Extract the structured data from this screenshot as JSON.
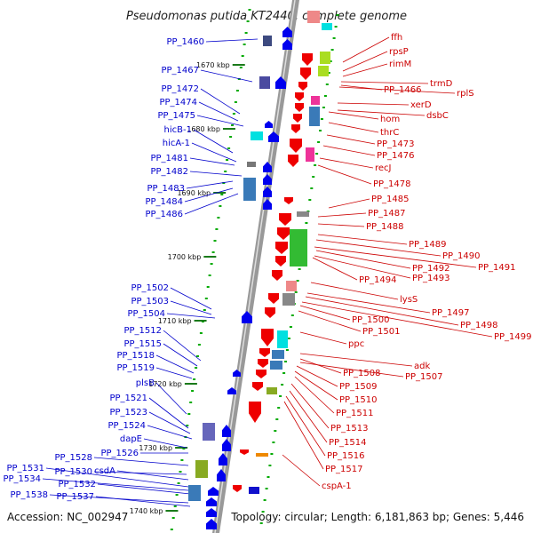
{
  "title": "Pseudomonas putida KT2440, complete genome",
  "accession": "Accession: NC_002947",
  "topology": "Topology: circular; Length: 6,181,863 bp; Genes: 5,446",
  "colors": {
    "forward": "#0000ee",
    "reverse": "#ee0000",
    "backbone": "#999999",
    "tick": "#00aa00"
  },
  "scale_labels": [
    "1670 kbp",
    "1680 kbp",
    "1690 kbp",
    "1700 kbp",
    "1710 kbp",
    "1720 kbp",
    "1730 kbp",
    "1740 kbp"
  ],
  "left_genes": [
    "PP_1460",
    "PP_1467",
    "PP_1472",
    "PP_1474",
    "PP_1475",
    "hicB-1",
    "hicA-1",
    "PP_1481",
    "PP_1482",
    "PP_1483",
    "PP_1484",
    "PP_1486",
    "PP_1502",
    "PP_1503",
    "PP_1504",
    "PP_1512",
    "PP_1515",
    "PP_1518",
    "PP_1519",
    "plsB",
    "PP_1521",
    "PP_1523",
    "PP_1524",
    "dapE",
    "PP_1526",
    "PP_1528",
    "PP_1530",
    "csdA",
    "PP_1531",
    "PP_1534",
    "PP_1532",
    "PP_1538",
    "PP_1537"
  ],
  "right_genes": [
    "ffh",
    "rpsP",
    "rimM",
    "trmD",
    "PP_1466",
    "rplS",
    "xerD",
    "dsbC",
    "hom",
    "thrC",
    "PP_1473",
    "PP_1476",
    "recJ",
    "PP_1478",
    "PP_1485",
    "PP_1487",
    "PP_1488",
    "PP_1489",
    "PP_1490",
    "PP_1491",
    "PP_1492",
    "PP_1493",
    "PP_1494",
    "lysS",
    "PP_1497",
    "PP_1498",
    "PP_1499",
    "PP_1500",
    "PP_1501",
    "ppc",
    "adk",
    "PP_1508",
    "PP_1507",
    "PP_1509",
    "PP_1510",
    "PP_1511",
    "PP_1513",
    "PP_1514",
    "PP_1516",
    "PP_1517",
    "cspA-1"
  ]
}
